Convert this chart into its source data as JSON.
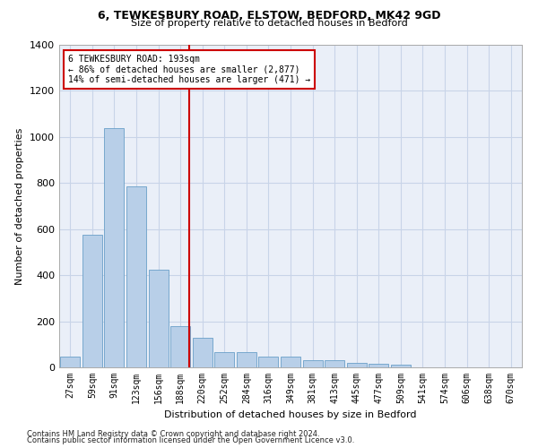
{
  "title1": "6, TEWKESBURY ROAD, ELSTOW, BEDFORD, MK42 9GD",
  "title2": "Size of property relative to detached houses in Bedford",
  "xlabel": "Distribution of detached houses by size in Bedford",
  "ylabel": "Number of detached properties",
  "categories": [
    "27sqm",
    "59sqm",
    "91sqm",
    "123sqm",
    "156sqm",
    "188sqm",
    "220sqm",
    "252sqm",
    "284sqm",
    "316sqm",
    "349sqm",
    "381sqm",
    "413sqm",
    "445sqm",
    "477sqm",
    "509sqm",
    "541sqm",
    "574sqm",
    "606sqm",
    "638sqm",
    "670sqm"
  ],
  "values": [
    45,
    575,
    1040,
    785,
    425,
    180,
    130,
    65,
    65,
    45,
    45,
    30,
    30,
    20,
    15,
    10,
    0,
    0,
    0,
    0,
    0
  ],
  "bar_color": "#b8cfe8",
  "bar_edge_color": "#6a9fc8",
  "vline_color": "#cc0000",
  "annotation_title": "6 TEWKESBURY ROAD: 193sqm",
  "annotation_line1": "← 86% of detached houses are smaller (2,877)",
  "annotation_line2": "14% of semi-detached houses are larger (471) →",
  "annotation_box_color": "#cc0000",
  "ylim": [
    0,
    1400
  ],
  "yticks": [
    0,
    200,
    400,
    600,
    800,
    1000,
    1200,
    1400
  ],
  "footnote1": "Contains HM Land Registry data © Crown copyright and database right 2024.",
  "footnote2": "Contains public sector information licensed under the Open Government Licence v3.0.",
  "background_color": "#ffffff",
  "grid_color": "#c8d4e8",
  "plot_bg_color": "#eaeff8"
}
